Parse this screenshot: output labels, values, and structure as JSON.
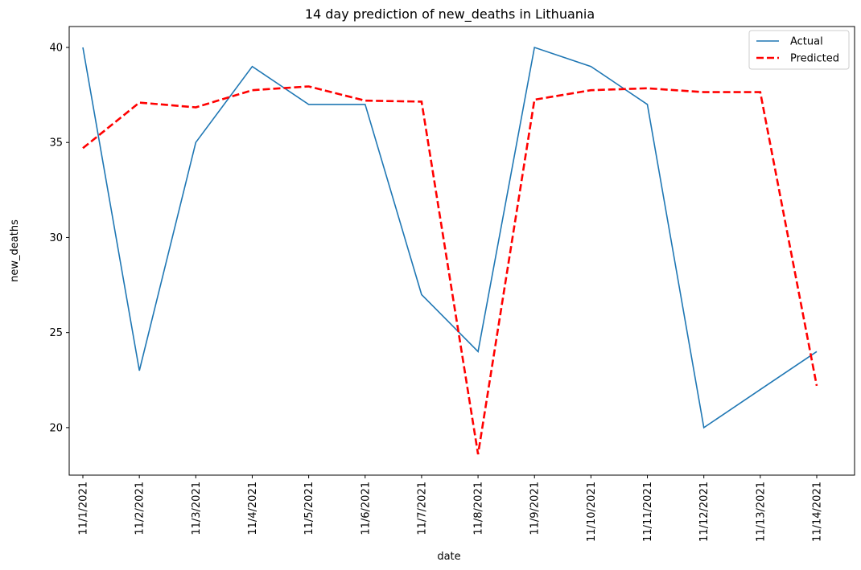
{
  "chart_data": {
    "type": "line",
    "title": "14 day prediction of new_deaths in Lithuania",
    "xlabel": "date",
    "ylabel": "new_deaths",
    "categories": [
      "11/1/2021",
      "11/2/2021",
      "11/3/2021",
      "11/4/2021",
      "11/5/2021",
      "11/6/2021",
      "11/7/2021",
      "11/8/2021",
      "11/9/2021",
      "11/10/2021",
      "11/11/2021",
      "11/12/2021",
      "11/13/2021",
      "11/14/2021"
    ],
    "ylim": [
      17.5,
      41.1
    ],
    "yticks": [
      20,
      25,
      30,
      35,
      40
    ],
    "grid": false,
    "legend_position": "top-right",
    "series": [
      {
        "name": "Actual",
        "color": "#1f77b4",
        "style": "solid",
        "values": [
          40,
          23,
          35,
          39,
          37,
          37,
          27,
          24,
          40,
          39,
          37,
          20,
          22,
          24
        ]
      },
      {
        "name": "Predicted",
        "color": "#ff0000",
        "style": "dashed",
        "values": [
          34.7,
          37.1,
          36.85,
          37.75,
          37.95,
          37.2,
          37.15,
          18.6,
          37.25,
          37.75,
          37.85,
          37.65,
          37.65,
          22.2
        ]
      }
    ]
  }
}
